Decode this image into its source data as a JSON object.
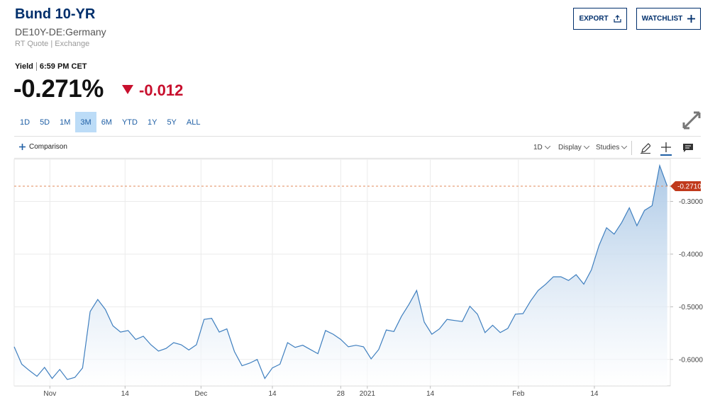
{
  "header": {
    "title": "Bund 10-YR",
    "symbol": "DE10Y-DE:Germany",
    "quote_source": "RT Quote | Exchange",
    "export": "EXPORT",
    "watchlist": "WATCHLIST",
    "status_label": "Yield",
    "status_time": "6:59 PM CET",
    "price": "-0.271%",
    "change": "-0.012"
  },
  "ranges": [
    "1D",
    "5D",
    "1M",
    "3M",
    "6M",
    "YTD",
    "1Y",
    "5Y",
    "ALL"
  ],
  "selected_range": "3M",
  "toolbar": {
    "comparison": "Comparison",
    "interval": "1D",
    "display": "Display",
    "studies": "Studies"
  },
  "chart_data": {
    "type": "area",
    "x": [
      0,
      1,
      2,
      3,
      4,
      5,
      6,
      7,
      8,
      9,
      10,
      11,
      12,
      13,
      14,
      15,
      16,
      17,
      18,
      19,
      20,
      21,
      22,
      23,
      24,
      25,
      26,
      27,
      28,
      29,
      30,
      31,
      32,
      33,
      34,
      35,
      36,
      37,
      38,
      39,
      40,
      41,
      42,
      43,
      44,
      45,
      46,
      47,
      48,
      49,
      50,
      51,
      52,
      53,
      54,
      55,
      56,
      57,
      58,
      59,
      60,
      61,
      62,
      63,
      64,
      65,
      66,
      67,
      68,
      69,
      70,
      71,
      72,
      73,
      74,
      75,
      76,
      77,
      78,
      79,
      80,
      81,
      82,
      83,
      84,
      85,
      86
    ],
    "values": [
      -0.576,
      -0.609,
      -0.621,
      -0.632,
      -0.615,
      -0.636,
      -0.619,
      -0.638,
      -0.634,
      -0.616,
      -0.509,
      -0.486,
      -0.505,
      -0.536,
      -0.548,
      -0.545,
      -0.562,
      -0.556,
      -0.572,
      -0.584,
      -0.579,
      -0.568,
      -0.572,
      -0.582,
      -0.572,
      -0.524,
      -0.522,
      -0.548,
      -0.542,
      -0.585,
      -0.612,
      -0.607,
      -0.6,
      -0.636,
      -0.616,
      -0.609,
      -0.568,
      -0.577,
      -0.573,
      -0.581,
      -0.589,
      -0.545,
      -0.552,
      -0.562,
      -0.576,
      -0.573,
      -0.576,
      -0.599,
      -0.581,
      -0.544,
      -0.547,
      -0.518,
      -0.495,
      -0.469,
      -0.529,
      -0.552,
      -0.542,
      -0.524,
      -0.526,
      -0.528,
      -0.499,
      -0.514,
      -0.549,
      -0.535,
      -0.549,
      -0.541,
      -0.514,
      -0.513,
      -0.489,
      -0.469,
      -0.457,
      -0.443,
      -0.443,
      -0.45,
      -0.439,
      -0.457,
      -0.43,
      -0.384,
      -0.35,
      -0.362,
      -0.34,
      -0.312,
      -0.346,
      -0.317,
      -0.308,
      -0.232,
      -0.271
    ],
    "color": "#3f7fbf",
    "fill_color": "#a8c6e5",
    "xlim": [
      0,
      86.4
    ],
    "ylim": [
      -0.65,
      -0.22
    ],
    "xticks": [
      {
        "value": 4.7,
        "label": "Nov"
      },
      {
        "value": 14.6,
        "label": "14"
      },
      {
        "value": 24.6,
        "label": "Dec"
      },
      {
        "value": 34,
        "label": "14"
      },
      {
        "value": 43,
        "label": "28"
      },
      {
        "value": 46.5,
        "label": "2021"
      },
      {
        "value": 54.8,
        "label": "14"
      },
      {
        "value": 66.4,
        "label": "Feb"
      },
      {
        "value": 76.4,
        "label": "14"
      }
    ],
    "yticks": [
      {
        "value": -0.3,
        "label": "-0.3000"
      },
      {
        "value": -0.4,
        "label": "-0.4000"
      },
      {
        "value": -0.5,
        "label": "-0.5000"
      },
      {
        "value": -0.6,
        "label": "-0.6000"
      }
    ],
    "grid": true,
    "last_price": {
      "value": -0.271,
      "label": "-0.2710"
    },
    "last_price_color": "#c0391b"
  }
}
